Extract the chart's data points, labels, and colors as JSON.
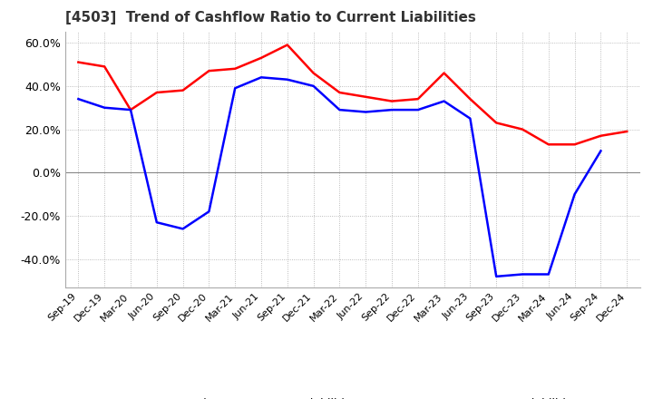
{
  "title": "[4503]  Trend of Cashflow Ratio to Current Liabilities",
  "x_labels": [
    "Sep-19",
    "Dec-19",
    "Mar-20",
    "Jun-20",
    "Sep-20",
    "Dec-20",
    "Mar-21",
    "Jun-21",
    "Sep-21",
    "Dec-21",
    "Mar-22",
    "Jun-22",
    "Sep-22",
    "Dec-22",
    "Mar-23",
    "Jun-23",
    "Sep-23",
    "Dec-23",
    "Mar-24",
    "Jun-24",
    "Sep-24",
    "Dec-24"
  ],
  "operating_cf": [
    51.0,
    49.0,
    29.0,
    37.0,
    38.0,
    47.0,
    48.0,
    53.0,
    59.0,
    46.0,
    37.0,
    35.0,
    33.0,
    34.0,
    46.0,
    34.0,
    23.0,
    20.0,
    13.0,
    13.0,
    17.0,
    19.0
  ],
  "free_cf": [
    34.0,
    30.0,
    29.0,
    -23.0,
    -26.0,
    -18.0,
    39.0,
    44.0,
    43.0,
    40.0,
    29.0,
    28.0,
    29.0,
    29.0,
    33.0,
    25.0,
    -48.0,
    -47.0,
    -47.0,
    -10.0,
    10.0,
    null
  ],
  "operating_color": "#ff0000",
  "free_color": "#0000ff",
  "ylim": [
    -53,
    65
  ],
  "yticks": [
    -40.0,
    -20.0,
    0.0,
    20.0,
    40.0,
    60.0
  ],
  "grid_color": "#aaaaaa",
  "background_color": "#ffffff",
  "legend_labels": [
    "Operating CF to Current Liabilities",
    "Free CF to Current Liabilities"
  ]
}
